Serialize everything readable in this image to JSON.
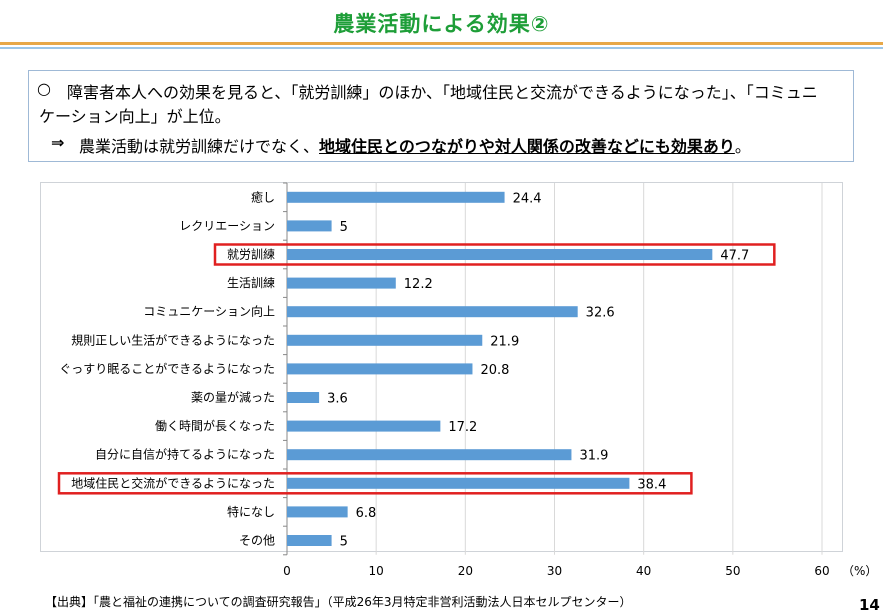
{
  "slide": {
    "title": "農業活動による効果②",
    "summary": {
      "bullet_marker": "○",
      "line1": "障害者本人への効果を見ると、「就労訓練」のほか、「地域住民と交流ができるようになった」、「コミュニ",
      "line2": "ケーション向上」が上位。",
      "arrow": "⇒",
      "line3_prefix": "農業活動は就労訓練だけでなく、",
      "line3_emphasis": "地域住民とのつながりや対人関係の改善などにも効果あり",
      "line3_suffix": "。"
    },
    "source": "【出典】「農と福祉の連携についての調査研究報告」（平成26年3月特定非営利活動法人日本セルプセンター）",
    "page_number": "14"
  },
  "chart_data": {
    "type": "bar",
    "orientation": "horizontal",
    "categories": [
      "癒し",
      "レクリエーション",
      "就労訓練",
      "生活訓練",
      "コミュニケーション向上",
      "規則正しい生活ができるようになった",
      "ぐっすり眠ることができるようになった",
      "薬の量が減った",
      "働く時間が長くなった",
      "自分に自信が持てるようになった",
      "地域住民と交流ができるようになった",
      "特になし",
      "その他"
    ],
    "values": [
      24.4,
      5,
      47.7,
      12.2,
      32.6,
      21.9,
      20.8,
      3.6,
      17.2,
      31.9,
      38.4,
      6.8,
      5
    ],
    "value_labels": [
      "24.4",
      "5",
      "47.7",
      "12.2",
      "32.6",
      "21.9",
      "20.8",
      "3.6",
      "17.2",
      "31.9",
      "38.4",
      "6.8",
      "5"
    ],
    "xlim": [
      0,
      60
    ],
    "xticks": [
      "0",
      "10",
      "20",
      "30",
      "40",
      "50",
      "60"
    ],
    "xunit": "（%）",
    "grid": true,
    "highlighted": [
      "就労訓練",
      "地域住民と交流ができるようになった"
    ],
    "colors": {
      "bar": "#5b9bd5",
      "highlight_border": "#e02020",
      "grid": "#d9d9d9"
    }
  }
}
